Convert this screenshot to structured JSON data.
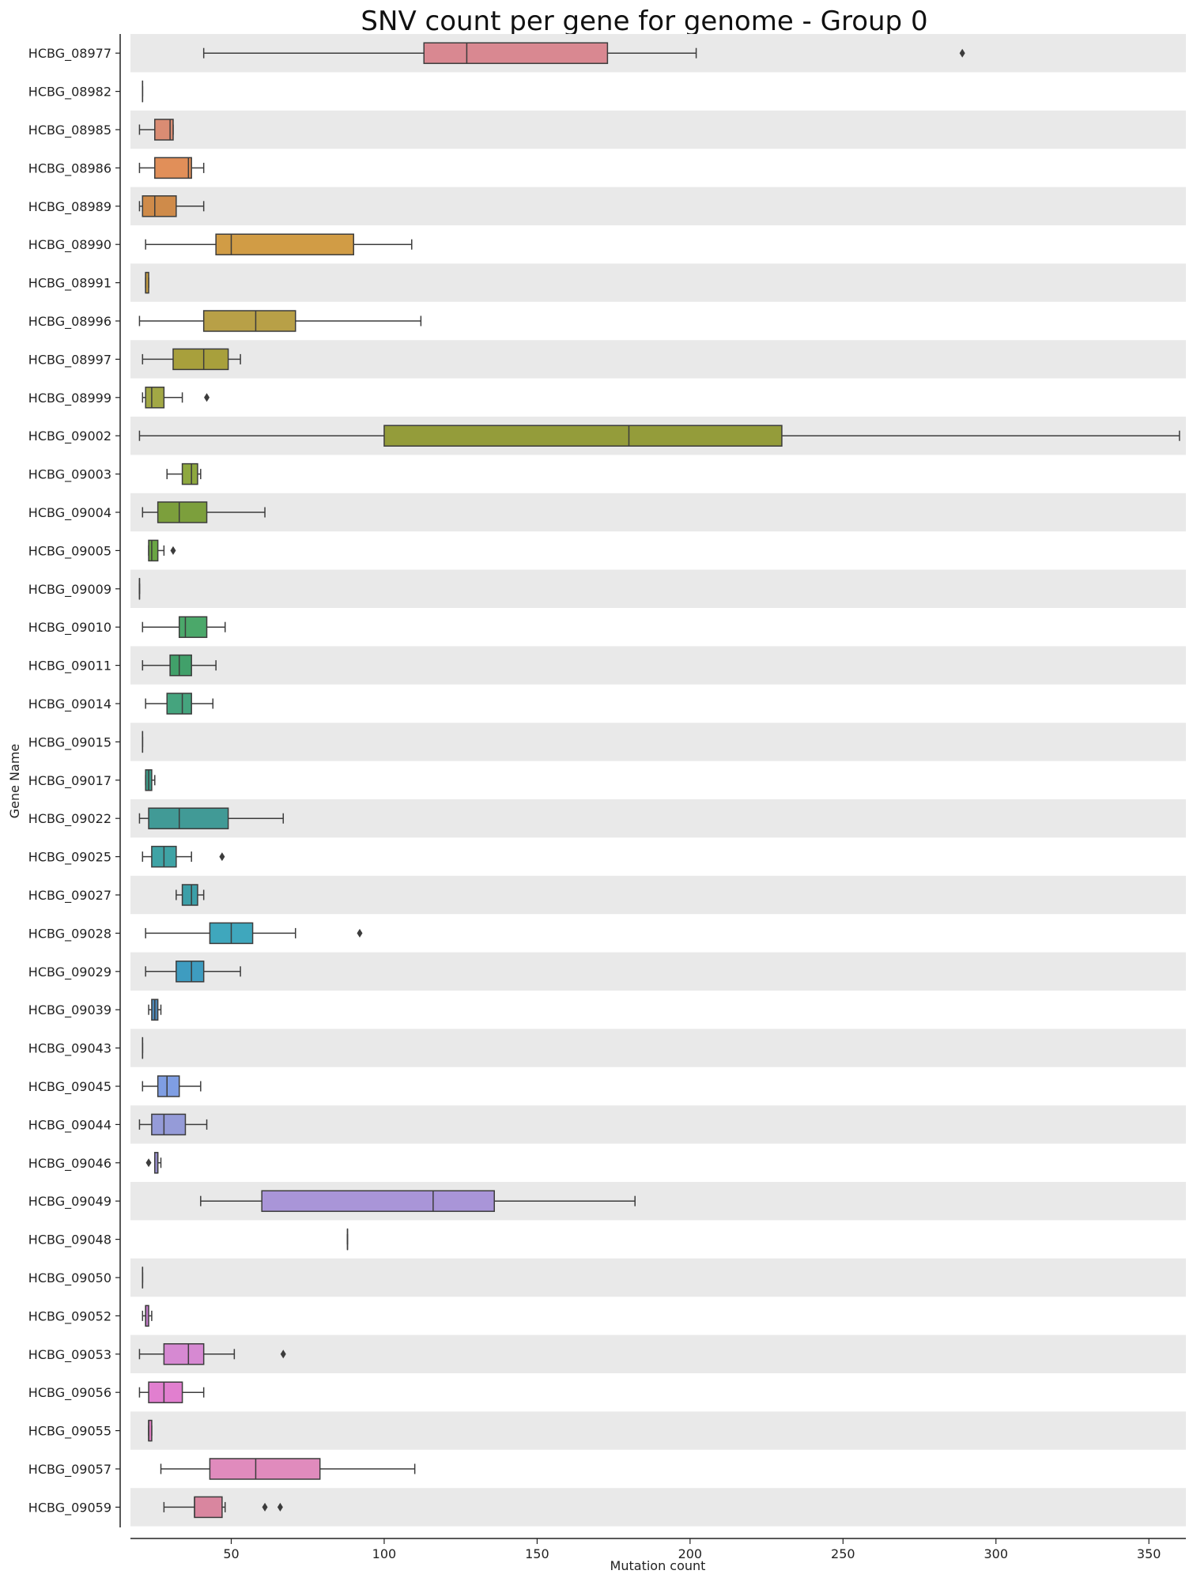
{
  "chart_data": {
    "type": "box",
    "orientation": "horizontal",
    "title": "SNV count per gene for genome - Group 0",
    "xlabel": "Mutation count",
    "ylabel": "Gene Name",
    "xlim": [
      17,
      364
    ],
    "xticks": [
      50,
      100,
      150,
      200,
      250,
      300,
      350
    ],
    "grid": false,
    "row_banding": true,
    "band_color": "#e9e9e9",
    "box_edge_color": "#3c3c3c",
    "categories": [
      "HCBG_08977",
      "HCBG_08982",
      "HCBG_08985",
      "HCBG_08986",
      "HCBG_08989",
      "HCBG_08990",
      "HCBG_08991",
      "HCBG_08996",
      "HCBG_08997",
      "HCBG_08999",
      "HCBG_09002",
      "HCBG_09003",
      "HCBG_09004",
      "HCBG_09005",
      "HCBG_09009",
      "HCBG_09010",
      "HCBG_09011",
      "HCBG_09014",
      "HCBG_09015",
      "HCBG_09017",
      "HCBG_09022",
      "HCBG_09025",
      "HCBG_09027",
      "HCBG_09028",
      "HCBG_09029",
      "HCBG_09039",
      "HCBG_09043",
      "HCBG_09045",
      "HCBG_09044",
      "HCBG_09046",
      "HCBG_09049",
      "HCBG_09048",
      "HCBG_09050",
      "HCBG_09052",
      "HCBG_09053",
      "HCBG_09056",
      "HCBG_09055",
      "HCBG_09057",
      "HCBG_09059"
    ],
    "boxes": [
      {
        "whislo": 41,
        "q1": 113,
        "med": 127,
        "q3": 173,
        "whishi": 202,
        "fliers": [
          289
        ],
        "color": "#d98891"
      },
      {
        "whislo": 21,
        "q1": 21,
        "med": 21,
        "q3": 21,
        "whishi": 21,
        "fliers": [],
        "color": "#d98a80"
      },
      {
        "whislo": 20,
        "q1": 25,
        "med": 30,
        "q3": 31,
        "whishi": 31,
        "fliers": [],
        "color": "#da8c73"
      },
      {
        "whislo": 20,
        "q1": 25,
        "med": 36,
        "q3": 37,
        "whishi": 41,
        "fliers": [],
        "color": "#e18f59"
      },
      {
        "whislo": 20,
        "q1": 21,
        "med": 25,
        "q3": 32,
        "whishi": 41,
        "fliers": [],
        "color": "#cf8b4a"
      },
      {
        "whislo": 22,
        "q1": 45,
        "med": 50,
        "q3": 90,
        "whishi": 109,
        "fliers": [],
        "color": "#d19c45"
      },
      {
        "whislo": 22,
        "q1": 22,
        "med": 22,
        "q3": 23,
        "whishi": 23,
        "fliers": [],
        "color": "#c49d44"
      },
      {
        "whislo": 20,
        "q1": 41,
        "med": 58,
        "q3": 71,
        "whishi": 112,
        "fliers": [],
        "color": "#b8a047"
      },
      {
        "whislo": 21,
        "q1": 31,
        "med": 41,
        "q3": 49,
        "whishi": 53,
        "fliers": [],
        "color": "#a8a03c"
      },
      {
        "whislo": 21,
        "q1": 22,
        "med": 24,
        "q3": 28,
        "whishi": 34,
        "fliers": [
          42
        ],
        "color": "#a2a845"
      },
      {
        "whislo": 20,
        "q1": 100,
        "med": 180,
        "q3": 230,
        "whishi": 360,
        "fliers": [],
        "color": "#949c3a"
      },
      {
        "whislo": 29,
        "q1": 34,
        "med": 37,
        "q3": 39,
        "whishi": 40,
        "fliers": [],
        "color": "#8ea83f"
      },
      {
        "whislo": 21,
        "q1": 26,
        "med": 33,
        "q3": 42,
        "whishi": 61,
        "fliers": [],
        "color": "#7c9f3c"
      },
      {
        "whislo": 23,
        "q1": 23,
        "med": 24,
        "q3": 26,
        "whishi": 28,
        "fliers": [
          31
        ],
        "color": "#6aa544"
      },
      {
        "whislo": 20,
        "q1": 20,
        "med": 20,
        "q3": 20,
        "whishi": 20,
        "fliers": [],
        "color": "#5aa657"
      },
      {
        "whislo": 21,
        "q1": 33,
        "med": 35,
        "q3": 42,
        "whishi": 48,
        "fliers": [],
        "color": "#4ba86a"
      },
      {
        "whislo": 21,
        "q1": 30,
        "med": 33,
        "q3": 37,
        "whishi": 45,
        "fliers": [],
        "color": "#41a06a"
      },
      {
        "whislo": 22,
        "q1": 29,
        "med": 34,
        "q3": 37,
        "whishi": 44,
        "fliers": [],
        "color": "#45a47e"
      },
      {
        "whislo": 21,
        "q1": 21,
        "med": 21,
        "q3": 21,
        "whishi": 21,
        "fliers": [],
        "color": "#3fa285"
      },
      {
        "whislo": 22,
        "q1": 22,
        "med": 23,
        "q3": 24,
        "whishi": 25,
        "fliers": [],
        "color": "#3f9c8a"
      },
      {
        "whislo": 20,
        "q1": 23,
        "med": 33,
        "q3": 49,
        "whishi": 67,
        "fliers": [],
        "color": "#419a96"
      },
      {
        "whislo": 21,
        "q1": 24,
        "med": 28,
        "q3": 32,
        "whishi": 37,
        "fliers": [
          47
        ],
        "color": "#3fa3a5"
      },
      {
        "whislo": 32,
        "q1": 34,
        "med": 37,
        "q3": 39,
        "whishi": 41,
        "fliers": [],
        "color": "#3c9fa8"
      },
      {
        "whislo": 22,
        "q1": 43,
        "med": 50,
        "q3": 57,
        "whishi": 71,
        "fliers": [
          92
        ],
        "color": "#3fa7bd"
      },
      {
        "whislo": 22,
        "q1": 32,
        "med": 37,
        "q3": 41,
        "whishi": 53,
        "fliers": [],
        "color": "#3e9cc0"
      },
      {
        "whislo": 23,
        "q1": 24,
        "med": 25,
        "q3": 26,
        "whishi": 27,
        "fliers": [],
        "color": "#4d87b6"
      },
      {
        "whislo": 21,
        "q1": 21,
        "med": 21,
        "q3": 21,
        "whishi": 21,
        "fliers": [],
        "color": "#6a8ec9"
      },
      {
        "whislo": 21,
        "q1": 26,
        "med": 29,
        "q3": 33,
        "whishi": 40,
        "fliers": [],
        "color": "#7f9ee3"
      },
      {
        "whislo": 20,
        "q1": 24,
        "med": 28,
        "q3": 35,
        "whishi": 42,
        "fliers": [],
        "color": "#959bd8"
      },
      {
        "whislo": 25,
        "q1": 25,
        "med": 26,
        "q3": 26,
        "whishi": 27,
        "fliers": [
          23
        ],
        "color": "#9c92d3"
      },
      {
        "whislo": 40,
        "q1": 60,
        "med": 116,
        "q3": 136,
        "whishi": 182,
        "fliers": [],
        "color": "#a995d8"
      },
      {
        "whislo": 88,
        "q1": 88,
        "med": 88,
        "q3": 88,
        "whishi": 88,
        "fliers": [],
        "color": "#b48fd3"
      },
      {
        "whislo": 21,
        "q1": 21,
        "med": 21,
        "q3": 21,
        "whishi": 21,
        "fliers": [],
        "color": "#bf8ed0"
      },
      {
        "whislo": 21,
        "q1": 22,
        "med": 22,
        "q3": 23,
        "whishi": 24,
        "fliers": [],
        "color": "#c37dc8"
      },
      {
        "whislo": 20,
        "q1": 28,
        "med": 36,
        "q3": 41,
        "whishi": 51,
        "fliers": [
          67
        ],
        "color": "#d689d2"
      },
      {
        "whislo": 20,
        "q1": 23,
        "med": 28,
        "q3": 34,
        "whishi": 41,
        "fliers": [],
        "color": "#e17fcf"
      },
      {
        "whislo": 23,
        "q1": 23,
        "med": 23,
        "q3": 24,
        "whishi": 24,
        "fliers": [],
        "color": "#dc7dbf"
      },
      {
        "whislo": 27,
        "q1": 43,
        "med": 58,
        "q3": 79,
        "whishi": 110,
        "fliers": [],
        "color": "#e08bbd"
      },
      {
        "whislo": 28,
        "q1": 38,
        "med": 38,
        "q3": 47,
        "whishi": 48,
        "fliers": [
          61,
          66
        ],
        "color": "#d9869f"
      }
    ]
  }
}
